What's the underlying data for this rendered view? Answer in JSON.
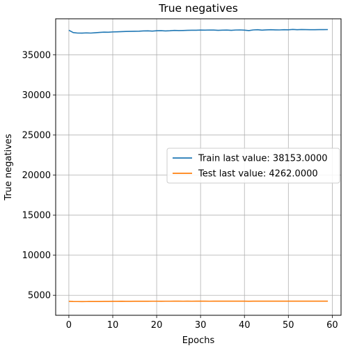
{
  "chart_data": {
    "type": "line",
    "title": "True negatives",
    "xlabel": "Epochs",
    "ylabel": "True negatives",
    "xlim": [
      -3,
      62
    ],
    "ylim": [
      2500,
      39500
    ],
    "xticks": [
      0,
      10,
      20,
      30,
      40,
      50,
      60
    ],
    "yticks": [
      5000,
      10000,
      15000,
      20000,
      25000,
      30000,
      35000
    ],
    "grid": true,
    "legend_position": "center-right",
    "x": [
      0,
      1,
      2,
      3,
      4,
      5,
      6,
      7,
      8,
      9,
      10,
      11,
      12,
      13,
      14,
      15,
      16,
      17,
      18,
      19,
      20,
      21,
      22,
      23,
      24,
      25,
      26,
      27,
      28,
      29,
      30,
      31,
      32,
      33,
      34,
      35,
      36,
      37,
      38,
      39,
      40,
      41,
      42,
      43,
      44,
      45,
      46,
      47,
      48,
      49,
      50,
      51,
      52,
      53,
      54,
      55,
      56,
      57,
      58,
      59
    ],
    "series": [
      {
        "name": "Train last value: 38153.0000",
        "color": "#1f77b4",
        "values": [
          38070,
          37780,
          37720,
          37710,
          37740,
          37720,
          37760,
          37800,
          37830,
          37820,
          37860,
          37880,
          37900,
          37920,
          37930,
          37940,
          37950,
          37990,
          38000,
          37960,
          38010,
          38020,
          37990,
          38010,
          38050,
          38030,
          38040,
          38060,
          38070,
          38070,
          38090,
          38080,
          38100,
          38090,
          38060,
          38080,
          38090,
          38060,
          38100,
          38110,
          38080,
          38030,
          38110,
          38140,
          38080,
          38120,
          38140,
          38120,
          38110,
          38140,
          38130,
          38170,
          38140,
          38160,
          38150,
          38140,
          38140,
          38150,
          38150,
          38153
        ]
      },
      {
        "name": "Test last value: 4262.0000",
        "color": "#ff7f0e",
        "values": [
          4240,
          4220,
          4215,
          4210,
          4215,
          4220,
          4220,
          4225,
          4230,
          4235,
          4240,
          4240,
          4250,
          4245,
          4240,
          4250,
          4255,
          4250,
          4255,
          4260,
          4260,
          4255,
          4260,
          4260,
          4262,
          4265,
          4260,
          4262,
          4260,
          4262,
          4265,
          4262,
          4260,
          4262,
          4265,
          4262,
          4265,
          4262,
          4265,
          4268,
          4262,
          4255,
          4262,
          4265,
          4262,
          4265,
          4262,
          4265,
          4262,
          4265,
          4262,
          4265,
          4262,
          4265,
          4262,
          4265,
          4262,
          4265,
          4262,
          4262
        ]
      }
    ]
  }
}
